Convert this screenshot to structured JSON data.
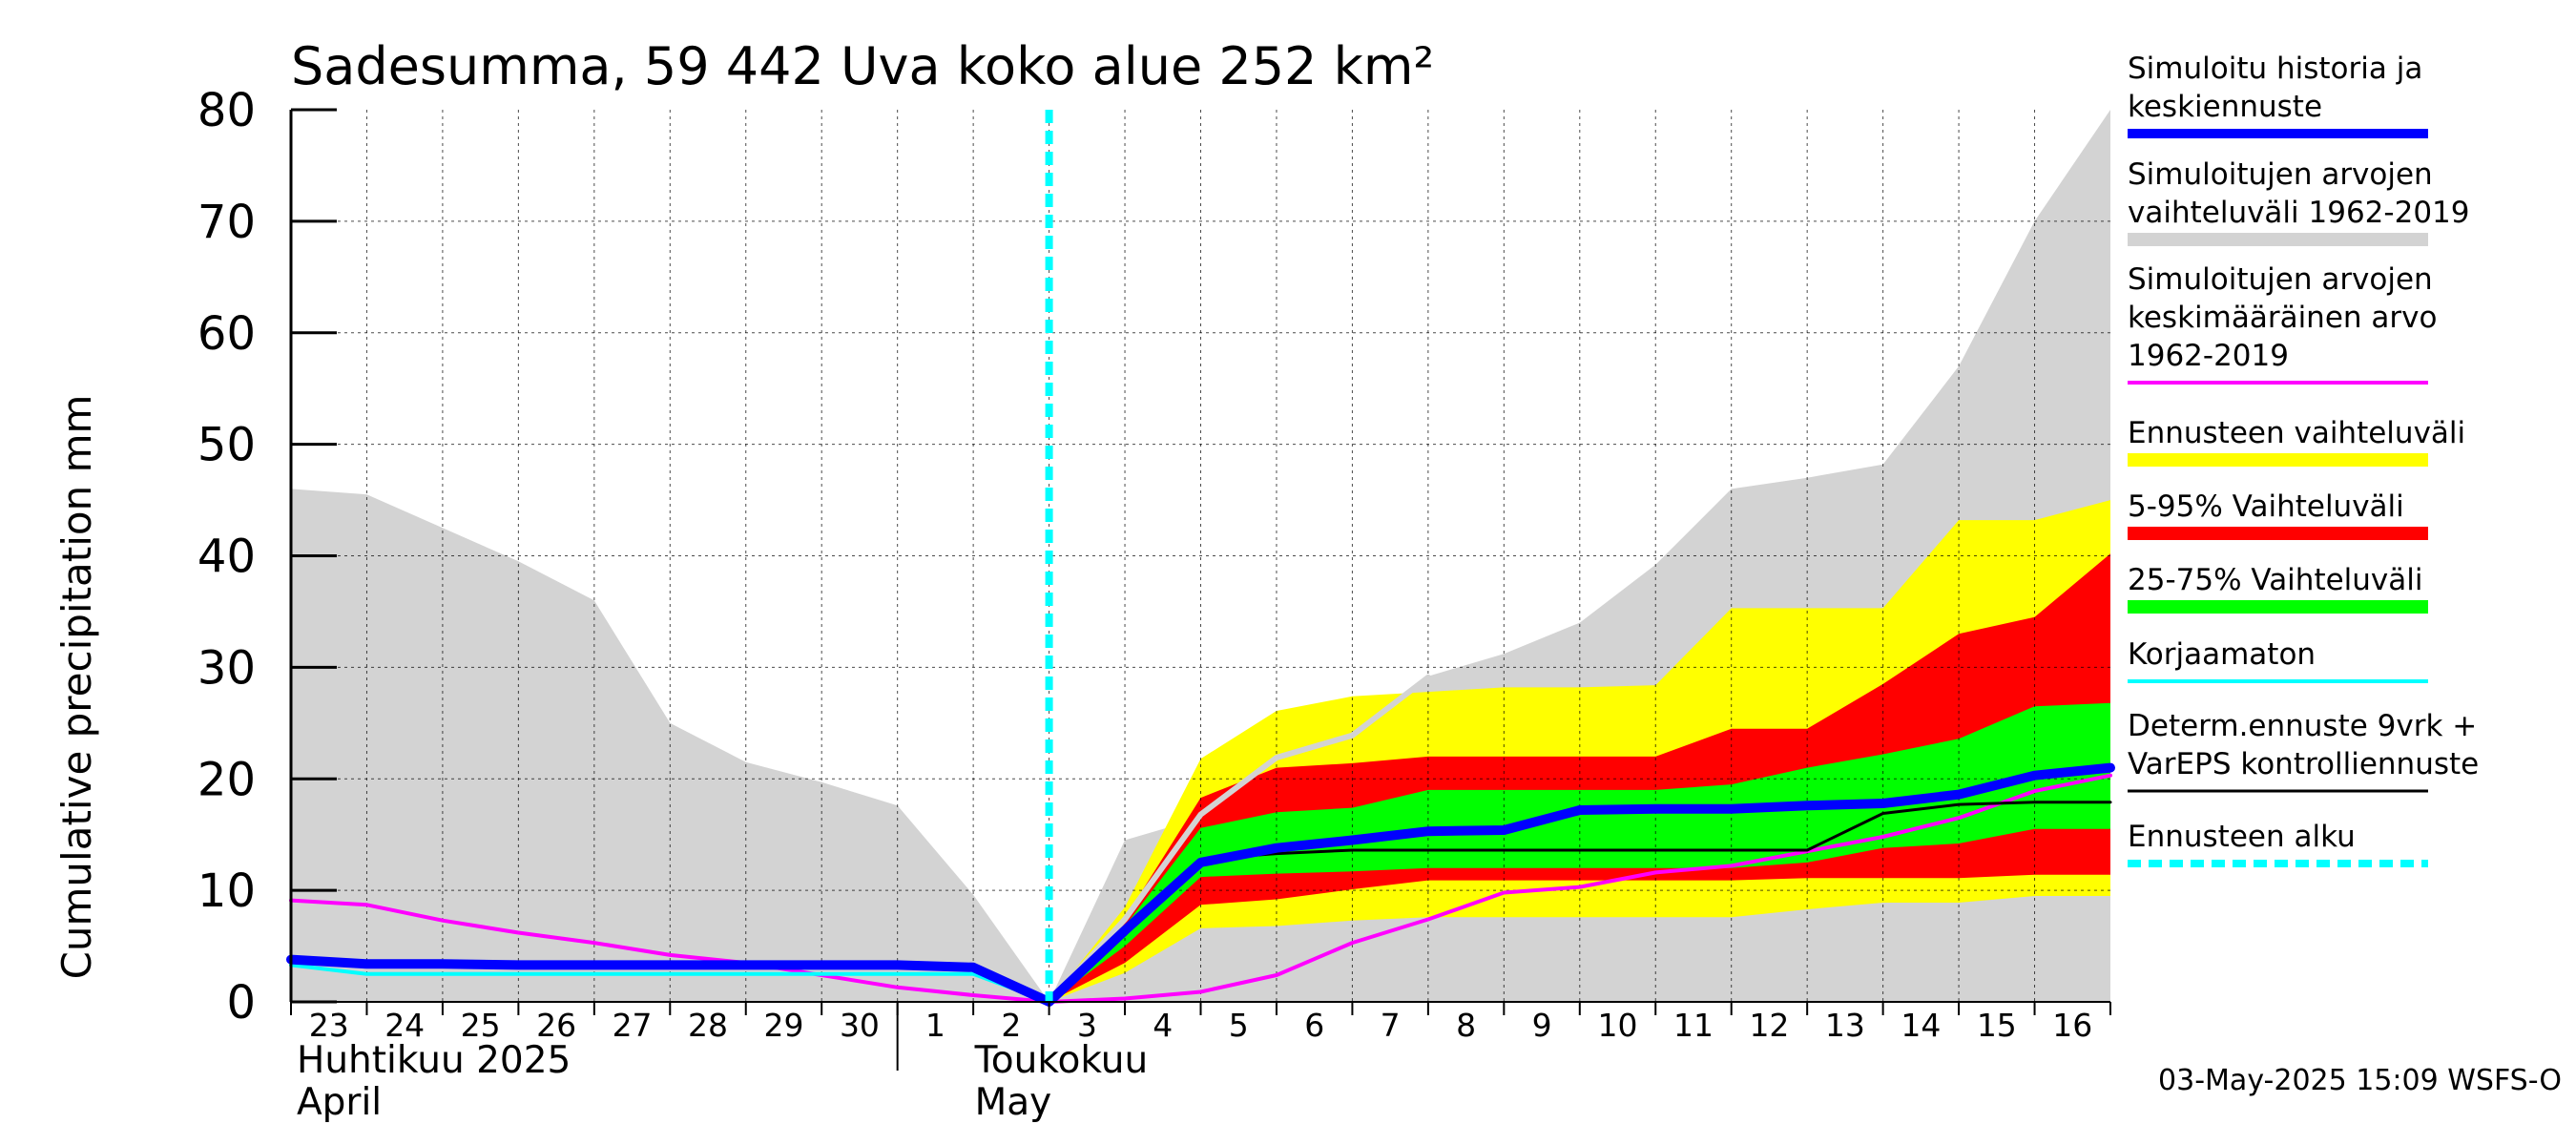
{
  "chart_data": {
    "type": "area",
    "title": "Sadesumma, 59 442 Uva koko alue 252 km²",
    "ylabel": "Cumulative precipitation   mm",
    "ylim": [
      0,
      80
    ],
    "yticks": [
      "0",
      "10",
      "20",
      "30",
      "40",
      "50",
      "60",
      "70",
      "80"
    ],
    "xlim": [
      0,
      24
    ],
    "day_labels": [
      "23",
      "24",
      "25",
      "26",
      "27",
      "28",
      "29",
      "30",
      "1",
      "2",
      "3",
      "4",
      "5",
      "6",
      "7",
      "8",
      "9",
      "10",
      "11",
      "12",
      "13",
      "14",
      "15",
      "16"
    ],
    "month_labels": [
      {
        "line1": "Huhtikuu  2025",
        "line2": "April"
      },
      {
        "line1": "Toukokuu",
        "line2": "May"
      }
    ],
    "forecast_start": 10,
    "timestamp": "03-May-2025 15:09 WSFS-O",
    "grid": true,
    "legend_position": "right",
    "history_band": {
      "name": "Simuloitujen arvojen vaihteluväli 1962-2019",
      "x": [
        0,
        1,
        2,
        3,
        4,
        5,
        6,
        7,
        8,
        9,
        10,
        11,
        12,
        13,
        14,
        15,
        16,
        17,
        18,
        19,
        20,
        21,
        22,
        23,
        24
      ],
      "low": [
        0,
        0,
        0,
        0,
        0,
        0,
        0,
        0,
        0,
        0,
        0,
        0,
        0,
        0,
        0,
        0,
        0,
        0,
        0,
        0,
        0,
        0,
        0,
        0,
        0
      ],
      "high": [
        46,
        45.5,
        42.5,
        39.5,
        36,
        25,
        21.5,
        19.7,
        17.6,
        9.6,
        0,
        14.5,
        16.5,
        20.5,
        24.5,
        29.2,
        31.2,
        34,
        39.2,
        46,
        47,
        48.2,
        57,
        70,
        80
      ]
    },
    "bands": [
      {
        "name": "Ennusteen vaihteluväli",
        "color": "#ffff00",
        "x": [
          10,
          11,
          12,
          13,
          14,
          15,
          16,
          17,
          18,
          19,
          20,
          21,
          22,
          23,
          24
        ],
        "low": [
          0,
          2.6,
          6.6,
          6.8,
          7.3,
          7.6,
          7.6,
          7.6,
          7.6,
          7.6,
          8.3,
          8.9,
          8.9,
          9.5,
          9.5
        ],
        "high": [
          0,
          8.5,
          21.8,
          26.1,
          27.4,
          27.8,
          28.2,
          28.2,
          28.4,
          35.3,
          35.3,
          35.3,
          43.2,
          43.2,
          45
        ]
      },
      {
        "name": "5-95% Vaihteluväli",
        "color": "#ff0000",
        "x": [
          10,
          11,
          12,
          13,
          14,
          15,
          16,
          17,
          18,
          19,
          20,
          21,
          22,
          23,
          24
        ],
        "low": [
          0,
          3.5,
          8.7,
          9.2,
          10.1,
          10.9,
          10.9,
          10.9,
          10.9,
          10.9,
          11.1,
          11.1,
          11.1,
          11.4,
          11.4
        ],
        "high": [
          0,
          7.5,
          18.3,
          21,
          21.4,
          22,
          22,
          22,
          22,
          24.5,
          24.5,
          28.5,
          33,
          34.5,
          40.2
        ]
      },
      {
        "name": "25-75% Vaihteluväli",
        "color": "#00ff00",
        "x": [
          10,
          11,
          12,
          13,
          14,
          15,
          16,
          17,
          18,
          19,
          20,
          21,
          22,
          23,
          24
        ],
        "low": [
          0,
          5,
          11.2,
          11.5,
          11.7,
          12,
          12,
          12,
          12,
          12,
          12.5,
          13.8,
          14.2,
          15.5,
          15.5
        ],
        "high": [
          0,
          6.8,
          15.6,
          17,
          17.4,
          19,
          19,
          19,
          19,
          19.5,
          21,
          22.2,
          23.6,
          26.5,
          26.8
        ]
      }
    ],
    "series": [
      {
        "name": "Simuloitujen arvojen keskimääräinen arvo 1962-2019",
        "color": "#ff00ff",
        "width": 4,
        "x": [
          0,
          1,
          2,
          3,
          4,
          5,
          6,
          7,
          8,
          9,
          10,
          11,
          12,
          13,
          14,
          15,
          16,
          17,
          18,
          19,
          20,
          21,
          22,
          23,
          24
        ],
        "y": [
          9.1,
          8.7,
          7.3,
          6.2,
          5.3,
          4.2,
          3.5,
          2.4,
          1.3,
          0.6,
          0,
          0.3,
          0.9,
          2.4,
          5.3,
          7.4,
          9.8,
          10.3,
          11.6,
          12.2,
          13.5,
          14.8,
          16.5,
          18.9,
          20.3
        ]
      },
      {
        "name": "Korjaamaton",
        "color": "#00ffff",
        "width": 4,
        "x": [
          0,
          1,
          2,
          3,
          4,
          5,
          6,
          7,
          8,
          9,
          10
        ],
        "y": [
          3.3,
          2.5,
          2.5,
          2.5,
          2.5,
          2.5,
          2.5,
          2.5,
          2.5,
          2.5,
          0
        ]
      },
      {
        "name": "",
        "color": "#d3d3d3",
        "width": 6,
        "x": [
          10,
          11,
          12,
          13,
          14,
          15
        ],
        "y": [
          0,
          7.4,
          16.8,
          21.9,
          23.9,
          29.1
        ]
      },
      {
        "name": "Determ.ennuste 9vrk + VarEPS kontrolliennuste",
        "color": "#000000",
        "width": 3,
        "x": [
          10,
          11,
          12,
          13,
          14,
          15,
          16,
          17,
          18,
          19,
          20,
          21,
          22,
          23,
          24
        ],
        "y": [
          0,
          6,
          12.8,
          13.3,
          13.6,
          13.6,
          13.6,
          13.6,
          13.6,
          13.6,
          13.6,
          16.9,
          17.7,
          17.9,
          17.9
        ]
      },
      {
        "name": "Simuloitu historia ja keskiennuste",
        "color": "#0000ff",
        "width": 10,
        "x": [
          0,
          1,
          2,
          3,
          4,
          5,
          6,
          7,
          8,
          9,
          10,
          11,
          12,
          13,
          14,
          15,
          16,
          17,
          18,
          19,
          20,
          21,
          22,
          23,
          24
        ],
        "y": [
          3.8,
          3.4,
          3.4,
          3.3,
          3.3,
          3.3,
          3.3,
          3.3,
          3.3,
          3.1,
          0,
          6.4,
          12.5,
          13.8,
          14.5,
          15.3,
          15.4,
          17.2,
          17.3,
          17.3,
          17.6,
          17.8,
          18.6,
          20.3,
          21
        ]
      }
    ],
    "legend": [
      {
        "label": [
          "Simuloitu historia ja",
          "keskiennuste"
        ],
        "color": "#0000ff",
        "style": "solid",
        "width": 10
      },
      {
        "label": [
          "Simuloitujen arvojen",
          "vaihteluväli 1962-2019"
        ],
        "color": "#d3d3d3",
        "style": "solid",
        "width": 14
      },
      {
        "label": [
          "Simuloitujen arvojen",
          "keskimääräinen arvo",
          "   1962-2019"
        ],
        "color": "#ff00ff",
        "style": "solid",
        "width": 4
      },
      {
        "label": [
          "Ennusteen vaihteluväli"
        ],
        "color": "#ffff00",
        "style": "solid",
        "width": 14
      },
      {
        "label": [
          "5-95% Vaihteluväli"
        ],
        "color": "#ff0000",
        "style": "solid",
        "width": 14
      },
      {
        "label": [
          "25-75% Vaihteluväli"
        ],
        "color": "#00ff00",
        "style": "solid",
        "width": 14
      },
      {
        "label": [
          "Korjaamaton"
        ],
        "color": "#00ffff",
        "style": "solid",
        "width": 4
      },
      {
        "label": [
          "Determ.ennuste 9vrk +",
          "VarEPS kontrolliennuste"
        ],
        "color": "#000000",
        "style": "solid",
        "width": 3
      },
      {
        "label": [
          "Ennusteen alku"
        ],
        "color": "#00ffff",
        "style": "dashed",
        "width": 8
      }
    ]
  }
}
